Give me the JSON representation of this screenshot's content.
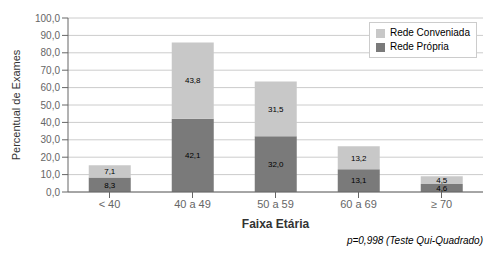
{
  "chart_data": {
    "type": "bar",
    "stacked": true,
    "categories": [
      "< 40",
      "40 a 49",
      "50 a 59",
      "60 a 69",
      "≥ 70"
    ],
    "series": [
      {
        "name": "Rede Própria",
        "color": "#7a7a7a",
        "values": [
          8.3,
          42.1,
          32.0,
          13.1,
          4.6
        ],
        "value_labels": [
          "8,3",
          "42,1",
          "32,0",
          "13,1",
          "4,6"
        ]
      },
      {
        "name": "Rede Conveniada",
        "color": "#c8c8c8",
        "values": [
          7.1,
          43.8,
          31.5,
          13.2,
          4.5
        ],
        "value_labels": [
          "7,1",
          "43,8",
          "31,5",
          "13,2",
          "4,5"
        ]
      }
    ],
    "xlabel": "Faixa Etária",
    "ylabel": "Percentual de Exames",
    "ylim": [
      0,
      100
    ],
    "yticks": [
      {
        "value": 0.0,
        "label": "0,0"
      },
      {
        "value": 10.0,
        "label": "10,0"
      },
      {
        "value": 20.0,
        "label": "20,0"
      },
      {
        "value": 30.0,
        "label": "30,0"
      },
      {
        "value": 40.0,
        "label": "40,0"
      },
      {
        "value": 50.0,
        "label": "50,0"
      },
      {
        "value": 60.0,
        "label": "60,0"
      },
      {
        "value": 70.0,
        "label": "70,0"
      },
      {
        "value": 80.0,
        "label": "80,0"
      },
      {
        "value": 90.0,
        "label": "90,0"
      },
      {
        "value": 100.0,
        "label": "100,0"
      }
    ],
    "grid": true,
    "legend": "upper right",
    "data_labels": true,
    "annotation": "p=0,998 (Teste Qui-Quadrado)"
  }
}
